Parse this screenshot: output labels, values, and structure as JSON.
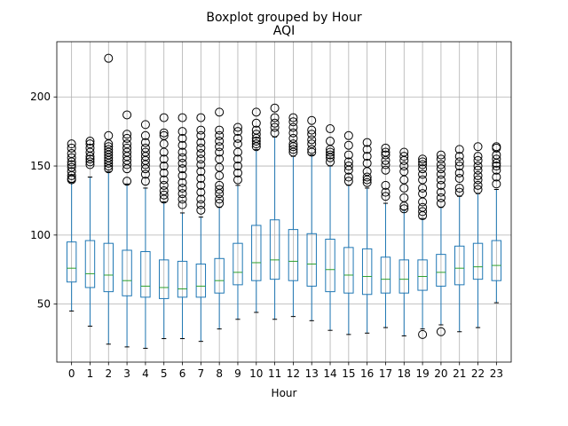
{
  "chart_data": {
    "type": "boxplot",
    "suptitle": "Boxplot grouped by Hour",
    "title": "AQI",
    "xlabel": "Hour",
    "ylabel": "",
    "ylim": [
      8,
      240
    ],
    "yticks": [
      50,
      100,
      150,
      200
    ],
    "grid": true,
    "categories": [
      "0",
      "1",
      "2",
      "3",
      "4",
      "5",
      "6",
      "7",
      "8",
      "9",
      "10",
      "11",
      "12",
      "13",
      "14",
      "15",
      "16",
      "17",
      "18",
      "19",
      "20",
      "21",
      "22",
      "23"
    ],
    "boxes": [
      {
        "q1": 66,
        "median": 76,
        "q3": 95,
        "whislo": 45,
        "whishi": 138,
        "fliers": [
          140,
          141,
          143,
          146,
          149,
          151,
          153,
          156,
          159,
          163,
          166
        ]
      },
      {
        "q1": 62,
        "median": 72,
        "q3": 96,
        "whislo": 34,
        "whishi": 142,
        "fliers": [
          151,
          153,
          155,
          157,
          160,
          163,
          166,
          168
        ]
      },
      {
        "q1": 59,
        "median": 71,
        "q3": 94,
        "whislo": 21,
        "whishi": 146,
        "fliers": [
          148,
          150,
          152,
          154,
          156,
          158,
          160,
          162,
          164,
          166,
          172,
          228
        ]
      },
      {
        "q1": 56,
        "median": 67,
        "q3": 89,
        "whislo": 19,
        "whishi": 137,
        "fliers": [
          139,
          148,
          151,
          154,
          157,
          160,
          163,
          166,
          170,
          173,
          187
        ]
      },
      {
        "q1": 55,
        "median": 63,
        "q3": 88,
        "whislo": 18,
        "whishi": 134,
        "fliers": [
          139,
          144,
          148,
          151,
          154,
          157,
          160,
          163,
          167,
          172,
          180
        ]
      },
      {
        "q1": 54,
        "median": 62,
        "q3": 82,
        "whislo": 25,
        "whishi": 124,
        "fliers": [
          126,
          129,
          132,
          136,
          140,
          145,
          150,
          155,
          160,
          166,
          172,
          174,
          185
        ]
      },
      {
        "q1": 55,
        "median": 61,
        "q3": 81,
        "whislo": 25,
        "whishi": 116,
        "fliers": [
          122,
          126,
          130,
          134,
          138,
          143,
          148,
          152,
          156,
          160,
          165,
          170,
          175,
          185
        ]
      },
      {
        "q1": 55,
        "median": 63,
        "q3": 79,
        "whislo": 23,
        "whishi": 113,
        "fliers": [
          118,
          122,
          126,
          131,
          136,
          141,
          146,
          151,
          155,
          159,
          163,
          167,
          172,
          176,
          185
        ]
      },
      {
        "q1": 58,
        "median": 67,
        "q3": 83,
        "whislo": 32,
        "whishi": 120,
        "fliers": [
          123,
          126,
          130,
          133,
          136,
          143,
          149,
          155,
          160,
          164,
          168,
          172,
          176,
          189
        ]
      },
      {
        "q1": 64,
        "median": 73,
        "q3": 94,
        "whislo": 39,
        "whishi": 136,
        "fliers": [
          140,
          145,
          150,
          155,
          160,
          166,
          170,
          175,
          178
        ]
      },
      {
        "q1": 67,
        "median": 80,
        "q3": 107,
        "whislo": 44,
        "whishi": 162,
        "fliers": [
          164,
          166,
          168,
          170,
          173,
          176,
          181,
          189
        ]
      },
      {
        "q1": 68,
        "median": 82,
        "q3": 111,
        "whislo": 39,
        "whishi": 171,
        "fliers": [
          174,
          178,
          181,
          185,
          192
        ]
      },
      {
        "q1": 67,
        "median": 81,
        "q3": 104,
        "whislo": 41,
        "whishi": 157,
        "fliers": [
          160,
          162,
          164,
          166,
          170,
          174,
          178,
          182,
          185
        ]
      },
      {
        "q1": 63,
        "median": 79,
        "q3": 101,
        "whislo": 38,
        "whishi": 158,
        "fliers": [
          160,
          162,
          166,
          169,
          173,
          176,
          183
        ]
      },
      {
        "q1": 59,
        "median": 75,
        "q3": 97,
        "whislo": 31,
        "whishi": 150,
        "fliers": [
          153,
          156,
          158,
          160,
          162,
          168,
          177
        ]
      },
      {
        "q1": 58,
        "median": 71,
        "q3": 91,
        "whislo": 28,
        "whishi": 136,
        "fliers": [
          139,
          142,
          147,
          150,
          153,
          158,
          165,
          172
        ]
      },
      {
        "q1": 57,
        "median": 70,
        "q3": 90,
        "whislo": 29,
        "whishi": 134,
        "fliers": [
          138,
          140,
          142,
          146,
          152,
          157,
          162,
          167
        ]
      },
      {
        "q1": 58,
        "median": 68,
        "q3": 84,
        "whislo": 33,
        "whishi": 123,
        "fliers": [
          128,
          131,
          136,
          147,
          151,
          154,
          158,
          160,
          163
        ]
      },
      {
        "q1": 58,
        "median": 68,
        "q3": 82,
        "whislo": 27,
        "whishi": 118,
        "fliers": [
          119,
          121,
          127,
          134,
          140,
          146,
          150,
          154,
          157,
          160
        ]
      },
      {
        "q1": 60,
        "median": 70,
        "q3": 82,
        "whislo": 32,
        "whishi": 112,
        "fliers": [
          28,
          114,
          117,
          120,
          124,
          130,
          134,
          140,
          144,
          148,
          151,
          153,
          155
        ]
      },
      {
        "q1": 63,
        "median": 73,
        "q3": 86,
        "whislo": 35,
        "whishi": 120,
        "fliers": [
          30,
          123,
          127,
          131,
          136,
          140,
          144,
          148,
          151,
          155,
          158
        ]
      },
      {
        "q1": 64,
        "median": 76,
        "q3": 92,
        "whislo": 30,
        "whishi": 128,
        "fliers": [
          131,
          134,
          141,
          145,
          150,
          153,
          157,
          162
        ]
      },
      {
        "q1": 68,
        "median": 77,
        "q3": 94,
        "whislo": 33,
        "whishi": 130,
        "fliers": [
          133,
          136,
          140,
          143,
          147,
          150,
          154,
          157,
          164
        ]
      },
      {
        "q1": 67,
        "median": 78,
        "q3": 96,
        "whislo": 51,
        "whishi": 133,
        "fliers": [
          137,
          142,
          147,
          150,
          152,
          155,
          158,
          163,
          164
        ]
      }
    ]
  }
}
